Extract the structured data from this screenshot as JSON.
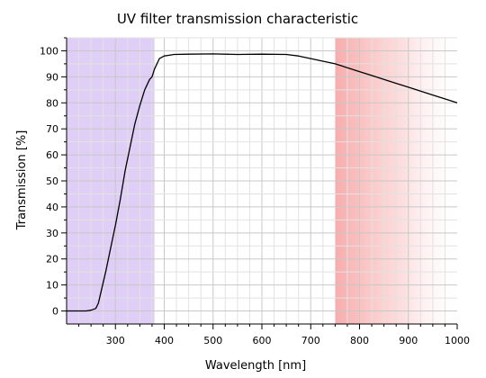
{
  "chart_data": {
    "type": "line",
    "title": "UV filter transmission characteristic",
    "xlabel": "Wavelength [nm]",
    "ylabel": "Transmission [%]",
    "xlim": [
      200,
      1000
    ],
    "ylim": [
      -5,
      105
    ],
    "xticks": [
      300,
      400,
      500,
      600,
      700,
      800,
      900,
      1000
    ],
    "yticks": [
      0,
      10,
      20,
      30,
      40,
      50,
      60,
      70,
      80,
      90,
      100
    ],
    "grid": true,
    "shaded_regions": [
      {
        "x": [
          200,
          380
        ],
        "color": "#d9c6f3",
        "description": "UV band"
      },
      {
        "x": [
          750,
          1000
        ],
        "color": "#f9b7b7",
        "fade": "toward-right",
        "description": "IR band"
      }
    ],
    "series": [
      {
        "color": "#000000",
        "x": [
          200,
          220,
          240,
          250,
          260,
          265,
          270,
          280,
          290,
          300,
          310,
          320,
          330,
          340,
          350,
          360,
          370,
          375,
          380,
          385,
          390,
          400,
          410,
          420,
          450,
          500,
          550,
          600,
          650,
          675,
          700,
          725,
          750,
          775,
          800,
          825,
          850,
          875,
          900,
          925,
          950,
          975,
          1000
        ],
        "y": [
          0,
          0,
          0,
          0.3,
          1,
          3,
          7,
          15,
          24,
          33,
          43,
          54,
          63,
          72,
          79,
          85,
          89,
          90,
          93,
          95,
          97,
          98,
          98.3,
          98.6,
          98.7,
          98.8,
          98.6,
          98.7,
          98.6,
          98,
          97,
          96,
          95,
          93.5,
          92,
          90.5,
          89,
          87.5,
          86,
          84.5,
          83,
          81.5,
          80
        ]
      }
    ]
  }
}
